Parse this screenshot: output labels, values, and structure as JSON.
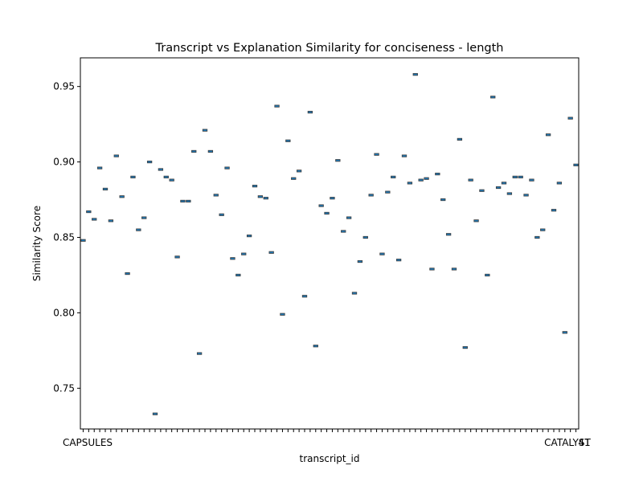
{
  "chart_data": {
    "type": "box",
    "title": "Transcript vs Explanation Similarity for conciseness - length",
    "xlabel": "transcript_id",
    "ylabel": "Similarity Score",
    "ylim": [
      0.723,
      0.969
    ],
    "yticks": [
      "0.75",
      "0.80",
      "0.85",
      "0.90",
      "0.95"
    ],
    "ytick_values": [
      0.75,
      0.8,
      0.85,
      0.9,
      0.95
    ],
    "xtick_label_left": "CAPSULES",
    "xtick_label_right": "CATALYST",
    "xtick_label_end": "41",
    "values": [
      0.848,
      0.867,
      0.862,
      0.896,
      0.882,
      0.861,
      0.904,
      0.877,
      0.826,
      0.89,
      0.855,
      0.863,
      0.9,
      0.733,
      0.895,
      0.89,
      0.888,
      0.837,
      0.874,
      0.874,
      0.907,
      0.773,
      0.921,
      0.907,
      0.878,
      0.865,
      0.896,
      0.836,
      0.825,
      0.839,
      0.851,
      0.884,
      0.877,
      0.876,
      0.84,
      0.937,
      0.799,
      0.914,
      0.889,
      0.894,
      0.811,
      0.933,
      0.778,
      0.871,
      0.866,
      0.876,
      0.901,
      0.854,
      0.863,
      0.813,
      0.834,
      0.85,
      0.878,
      0.905,
      0.839,
      0.88,
      0.89,
      0.835,
      0.904,
      0.886,
      0.958,
      0.888,
      0.889,
      0.829,
      0.892,
      0.875,
      0.852,
      0.829,
      0.915,
      0.777,
      0.888,
      0.861,
      0.881,
      0.825,
      0.943,
      0.883,
      0.886,
      0.879,
      0.89,
      0.89,
      0.878,
      0.888,
      0.85,
      0.855,
      0.918,
      0.868,
      0.886,
      0.787,
      0.929,
      0.898
    ],
    "colors": {
      "box": "#1f77b4",
      "edge": "#3f3f3f",
      "axis": "#000000",
      "background": "#ffffff"
    },
    "grid": false
  }
}
